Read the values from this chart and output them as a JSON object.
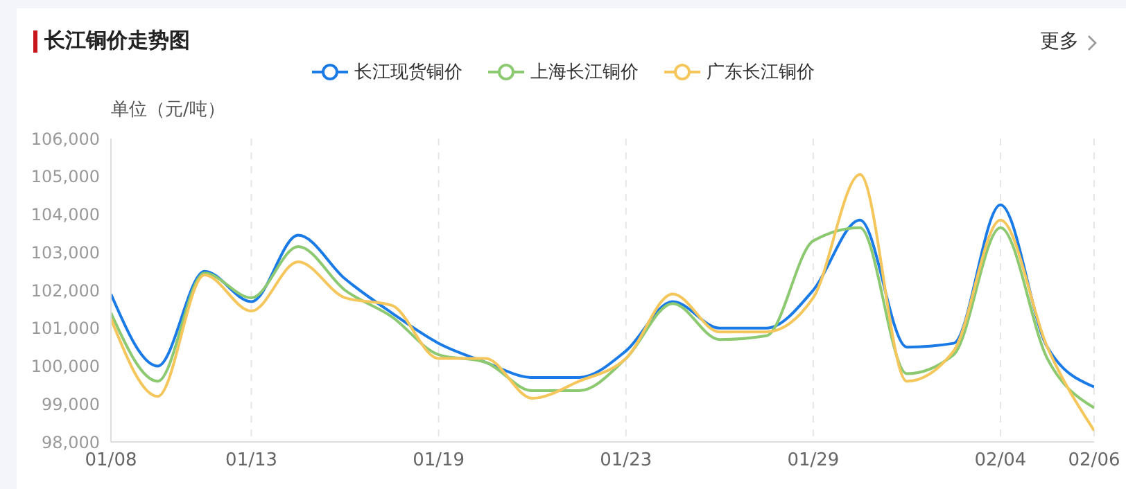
{
  "chart_data": {
    "type": "line",
    "title": "长江铜价走势图",
    "ylabel": "单位（元/吨）",
    "annotations": [
      "更多"
    ],
    "categories": [
      "01/08",
      null,
      null,
      "01/13",
      null,
      null,
      null,
      "01/19",
      null,
      null,
      null,
      "01/23",
      null,
      null,
      null,
      "01/29",
      null,
      null,
      null,
      "02/04",
      null,
      "02/06"
    ],
    "series": [
      {
        "name": "长江现货铜价",
        "color": "#1a7ae6",
        "values": [
          101900,
          100000,
          102500,
          101700,
          103450,
          102300,
          101400,
          100600,
          100100,
          99700,
          99700,
          100400,
          101700,
          101000,
          101000,
          102000,
          103850,
          100500,
          100600,
          104250,
          100500,
          99450
        ]
      },
      {
        "name": "上海长江铜价",
        "color": "#8cc971",
        "values": [
          101400,
          99600,
          102450,
          101800,
          103150,
          102000,
          101300,
          100300,
          100100,
          99350,
          99350,
          100200,
          101650,
          100700,
          100800,
          103300,
          103650,
          99800,
          100300,
          103650,
          100200,
          98900
        ]
      },
      {
        "name": "广东长江铜价",
        "color": "#f5c65c",
        "values": [
          101250,
          99200,
          102400,
          101450,
          102750,
          101800,
          101600,
          100200,
          100200,
          99150,
          99600,
          100200,
          101900,
          100900,
          100900,
          101800,
          105050,
          99600,
          100400,
          103850,
          100500,
          98300
        ]
      }
    ],
    "ylim": [
      98000,
      106000
    ],
    "yticks": [
      {
        "value": 98000,
        "label": "98,000"
      },
      {
        "value": 99000,
        "label": "99,000"
      },
      {
        "value": 100000,
        "label": "100,000"
      },
      {
        "value": 101000,
        "label": "101,000"
      },
      {
        "value": 102000,
        "label": "102,000"
      },
      {
        "value": 103000,
        "label": "103,000"
      },
      {
        "value": 104000,
        "label": "104,000"
      },
      {
        "value": 105000,
        "label": "105,000"
      },
      {
        "value": 106000,
        "label": "106,000"
      }
    ],
    "grid": "x",
    "legend": "top",
    "marker": "none",
    "line_style": "solid"
  }
}
